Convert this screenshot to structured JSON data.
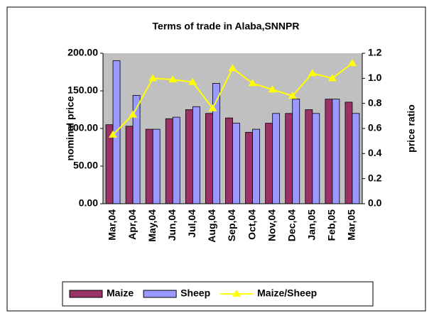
{
  "chart_data": {
    "type": "bar",
    "title": "Terms of trade in Alaba,SNNPR",
    "ylabel": "nominal price",
    "y2label": "price ratio",
    "categories": [
      "Mar,04",
      "Apr,04",
      "May,04",
      "Jun,04",
      "Jul,04",
      "Aug,04",
      "Sep,04",
      "Oct,04",
      "Nov,04",
      "Dec,04",
      "Jan,05",
      "Feb,05",
      "Mar,05"
    ],
    "series": [
      {
        "name": "Maize",
        "color": "#993366",
        "values": [
          105,
          103,
          99,
          113,
          125,
          120,
          114,
          95,
          107,
          120,
          125,
          139,
          135
        ]
      },
      {
        "name": "Sheep",
        "color": "#9999ff",
        "values": [
          190,
          144,
          99,
          115,
          129,
          160,
          107,
          99,
          120,
          139,
          120,
          139,
          120
        ]
      },
      {
        "name": "Maize/Sheep",
        "color": "#ffff00",
        "type": "line",
        "axis": "y2",
        "values": [
          0.55,
          0.71,
          1.0,
          0.99,
          0.97,
          0.76,
          1.08,
          0.96,
          0.91,
          0.86,
          1.04,
          1.0,
          1.12
        ]
      }
    ],
    "ylim": [
      0,
      200
    ],
    "yticks": [
      {
        "value": 0,
        "label": "0.00"
      },
      {
        "value": 50,
        "label": "50.00"
      },
      {
        "value": 100,
        "label": "100.00"
      },
      {
        "value": 150,
        "label": "150.00"
      },
      {
        "value": 200,
        "label": "200.00"
      }
    ],
    "y2lim": [
      0,
      1.2
    ],
    "y2ticks": [
      {
        "value": 0,
        "label": "0.0"
      },
      0.2,
      0.4,
      0.6,
      0.8,
      {
        "value": 1.0,
        "label": "1.0"
      },
      1.2
    ],
    "plot_background": "#c0c0c0",
    "grid": false,
    "legend": "bottom"
  }
}
